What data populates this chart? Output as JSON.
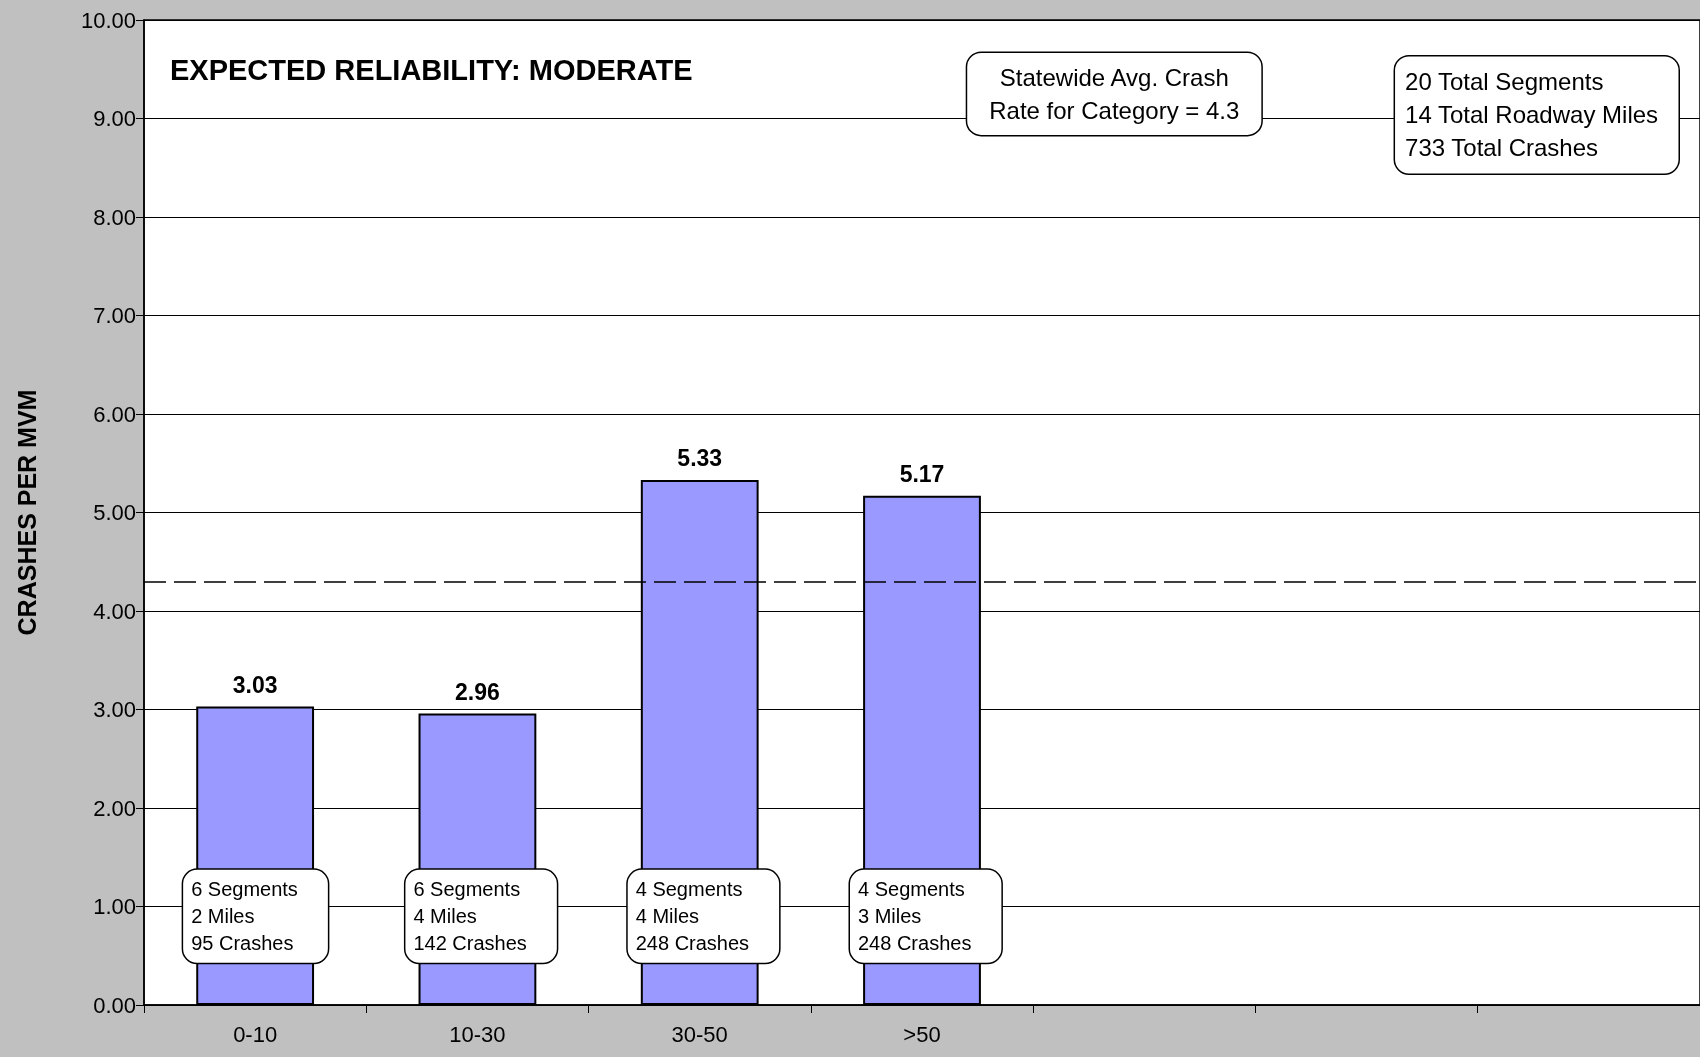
{
  "chart_data": {
    "type": "bar",
    "title": "EXPECTED RELIABILITY: MODERATE",
    "ylabel": "CRASHES PER MVM",
    "categories": [
      "0-10",
      "10-30",
      "30-50",
      ">50",
      null,
      null,
      null
    ],
    "values": [
      3.03,
      2.96,
      5.33,
      5.17,
      null,
      null,
      null
    ],
    "color": "#9999ff",
    "data_labels": true,
    "ylim": [
      0,
      10
    ],
    "yticks": [
      {
        "value": 0,
        "label": "0.00"
      },
      {
        "value": 1,
        "label": "1.00"
      },
      {
        "value": 2,
        "label": "2.00"
      },
      {
        "value": 3,
        "label": "3.00"
      },
      {
        "value": 4,
        "label": "4.00"
      },
      {
        "value": 5,
        "label": "5.00"
      },
      {
        "value": 6,
        "label": "6.00"
      },
      {
        "value": 7,
        "label": "7.00"
      },
      {
        "value": 8,
        "label": "8.00"
      },
      {
        "value": 9,
        "label": "9.00"
      },
      {
        "value": 10,
        "label": "10.00"
      }
    ],
    "grid": "y",
    "ref_lines": [
      {
        "axis": "y",
        "value": 4.3,
        "label": "Statewide Avg. Crash\nRate for Category = 4.3",
        "color": "#000000",
        "line_style": "dashed"
      }
    ],
    "annotations": [
      "20 Total Segments\n14 Total Roadway Miles\n733 Total Crashes",
      "6 Segments\n2 Miles\n95 Crashes",
      "6 Segments\n4 Miles\n142 Crashes",
      "4 Segments\n4 Miles\n248 Crashes",
      "4 Segments\n3 Miles\n248 Crashes"
    ]
  }
}
